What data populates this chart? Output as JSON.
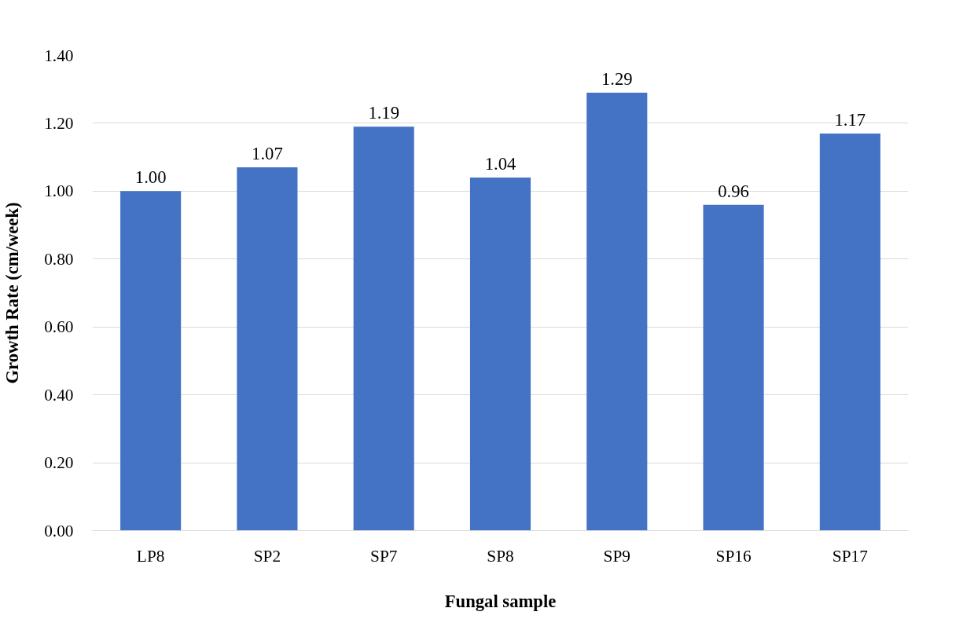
{
  "chart_data": {
    "type": "bar",
    "xlabel": "Fungal sample",
    "ylabel": "Growth Rate (cm/week)",
    "categories": [
      "LP8",
      "SP2",
      "SP7",
      "SP8",
      "SP9",
      "SP16",
      "SP17"
    ],
    "values": [
      1.0,
      1.07,
      1.19,
      1.04,
      1.29,
      0.96,
      1.17
    ],
    "color": "#4472c4",
    "ylim": [
      0,
      1.4
    ],
    "yticks": [
      {
        "value": 0,
        "label": "0.00"
      },
      {
        "value": 0.2,
        "label": "0.20"
      },
      {
        "value": 0.4,
        "label": "0.40"
      },
      {
        "value": 0.6,
        "label": "0.60"
      },
      {
        "value": 0.8,
        "label": "0.80"
      },
      {
        "value": 1.0,
        "label": "1.00"
      },
      {
        "value": 1.2,
        "label": "1.20"
      },
      {
        "value": 1.4,
        "label": "1.40"
      }
    ],
    "value_labels": [
      "1.00",
      "1.07",
      "1.19",
      "1.04",
      "1.29",
      "0.96",
      "1.17"
    ],
    "grid": "y"
  }
}
